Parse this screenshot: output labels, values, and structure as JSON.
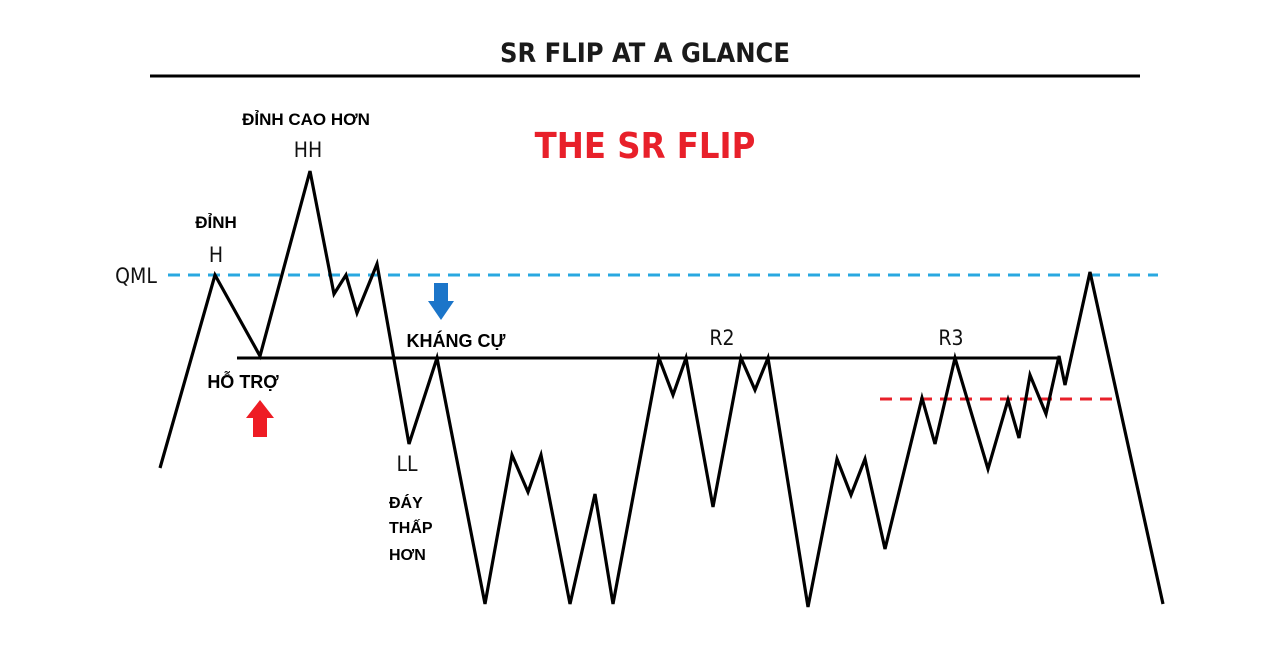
{
  "header": {
    "title": "SR FLIP AT A GLANCE"
  },
  "subtitle": "THE SR FLIP",
  "labels": {
    "qml": "QML",
    "dinh": "ĐỈNH",
    "h": "H",
    "dinh_cao_hon": "ĐỈNH CAO HƠN",
    "hh": "HH",
    "ho_tro": "HỖ TRỢ",
    "khang_cu": "KHÁNG CỰ",
    "ll": "LL",
    "day_line1": "ĐÁY",
    "day_line2": "THẤP",
    "day_line3": "HƠN",
    "r2": "R2",
    "r3": "R3"
  },
  "colors": {
    "price_line": "#000000",
    "qml_line": "#29a8e0",
    "red_dashed": "#e8202a",
    "subtitle": "#e8202a",
    "up_arrow": "#ee1c24",
    "down_arrow": "#1b75c9"
  },
  "icons": {
    "up_arrow": "arrow-up-icon",
    "down_arrow": "arrow-down-icon"
  }
}
